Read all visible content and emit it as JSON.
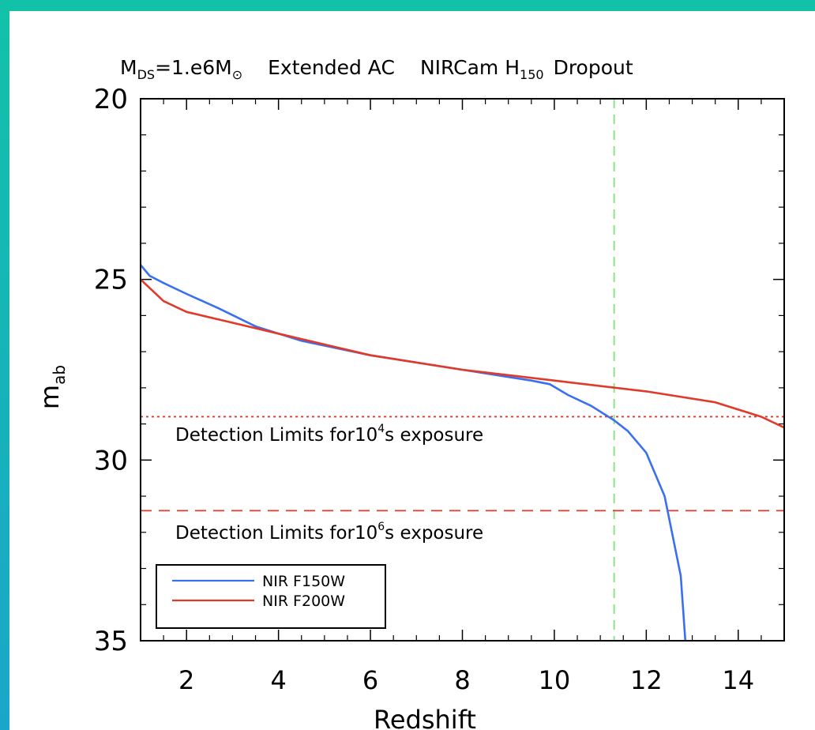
{
  "chart_data": {
    "type": "line",
    "title_parts": {
      "m": "M",
      "ds": "DS",
      "eq": "=1.e6M",
      "sun": "⊙",
      "extended": "Extended AC",
      "nircam": "NIRCam H",
      "h_sub": "150",
      "dropout": "Dropout"
    },
    "xlabel": "Redshift",
    "ylabel_main": "m",
    "ylabel_sub": "ab",
    "xlim": [
      1,
      15
    ],
    "ylim": [
      20,
      35
    ],
    "y_inverted": true,
    "x_ticks": [
      2,
      4,
      6,
      8,
      10,
      12,
      14
    ],
    "x_tick_labels": [
      "2",
      "4",
      "6",
      "8",
      "10",
      "12",
      "14"
    ],
    "y_ticks": [
      20,
      25,
      30,
      35
    ],
    "y_tick_labels": [
      "20",
      "25",
      "30",
      "35"
    ],
    "series": [
      {
        "name": "NIR F150W",
        "color": "#3a6ff0",
        "x": [
          1.0,
          1.2,
          1.5,
          2.0,
          2.7,
          3.5,
          4.5,
          6.0,
          8.0,
          9.5,
          9.9,
          10.3,
          10.8,
          11.3,
          11.6,
          12.0,
          12.4,
          12.75,
          12.85
        ],
        "y": [
          24.6,
          24.9,
          25.1,
          25.4,
          25.8,
          26.3,
          26.7,
          27.1,
          27.5,
          27.8,
          27.9,
          28.2,
          28.5,
          28.9,
          29.2,
          29.8,
          31.0,
          33.2,
          35.0
        ]
      },
      {
        "name": "NIR F200W",
        "color": "#e03a2a",
        "x": [
          1.0,
          1.5,
          2.0,
          3.0,
          4.0,
          5.0,
          6.0,
          8.0,
          10.0,
          12.0,
          13.5,
          14.5,
          15.0
        ],
        "y": [
          25.0,
          25.6,
          25.9,
          26.2,
          26.5,
          26.8,
          27.1,
          27.5,
          27.8,
          28.1,
          28.4,
          28.8,
          29.1
        ]
      }
    ],
    "reference_lines": {
      "vertical_z": 11.3,
      "vertical_color": "#7ee27e",
      "limit_1e4": 28.8,
      "limit_1e6": 31.4,
      "limit_color": "#e03a2a"
    },
    "annotations": {
      "lim4_prefix": "Detection Limits for10",
      "lim4_exp": "4",
      "lim4_suffix": "s exposure",
      "lim6_prefix": "Detection Limits for10",
      "lim6_exp": "6",
      "lim6_suffix": "s exposure"
    },
    "legend_position": "bottom-left",
    "grid": false
  }
}
